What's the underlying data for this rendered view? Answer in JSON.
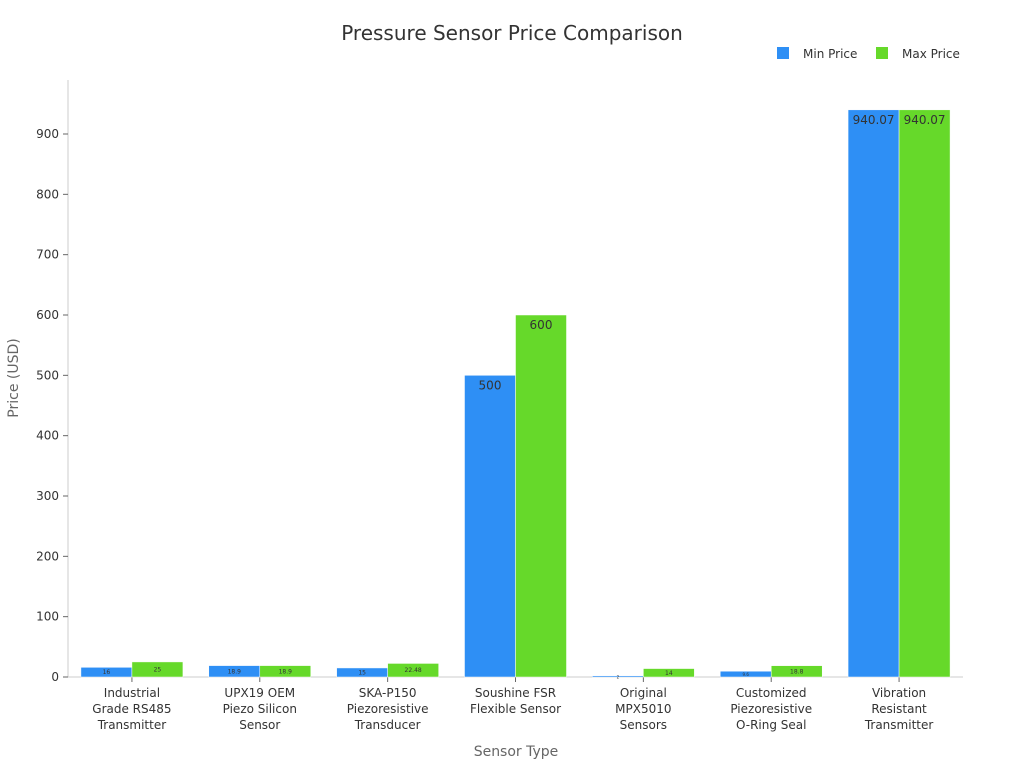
{
  "chart_data": {
    "type": "bar",
    "title": "Pressure Sensor Price Comparison",
    "xlabel": "Sensor Type",
    "ylabel": "Price (USD)",
    "ylim": [
      0,
      960
    ],
    "yticks": [
      0,
      100,
      200,
      300,
      400,
      500,
      600,
      700,
      800,
      900
    ],
    "grid": false,
    "legend": "top-right",
    "categories": [
      [
        "Industrial",
        "Grade RS485",
        "Transmitter"
      ],
      [
        "UPX19 OEM",
        "Piezo Silicon",
        "Sensor"
      ],
      [
        "SKA-P150",
        "Piezoresistive",
        "Transducer"
      ],
      [
        "Soushine FSR",
        "Flexible Sensor"
      ],
      [
        "Original",
        "MPX5010",
        "Sensors"
      ],
      [
        "Customized",
        "Piezoresistive",
        "O-Ring Seal"
      ],
      [
        "Vibration",
        "Resistant",
        "Transmitter"
      ]
    ],
    "series": [
      {
        "name": "Min Price",
        "color": "#2e8ff5",
        "values": [
          16,
          18.9,
          15,
          500,
          2,
          9.6,
          940.07
        ]
      },
      {
        "name": "Max Price",
        "color": "#66d92a",
        "values": [
          25,
          18.9,
          22.48,
          600,
          14,
          18.8,
          940.07
        ]
      }
    ]
  }
}
